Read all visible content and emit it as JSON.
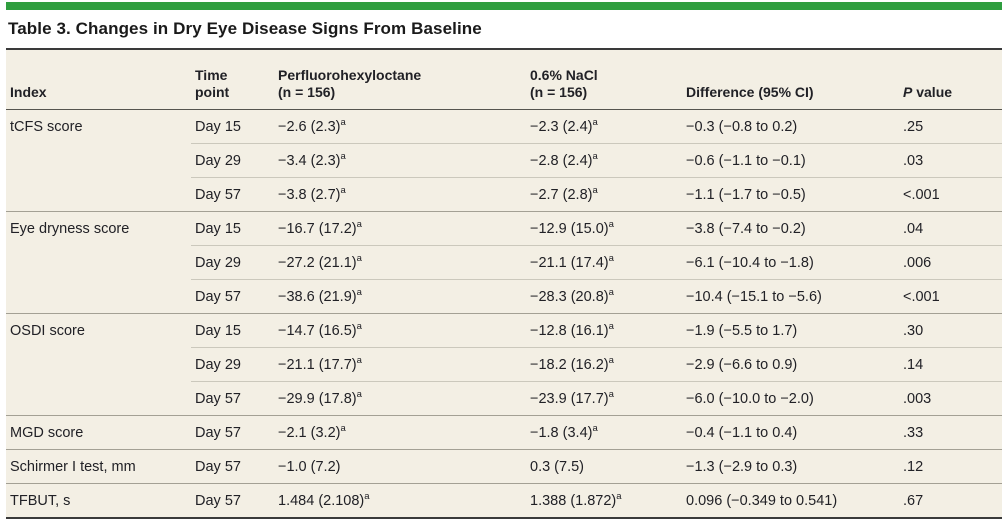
{
  "page": {
    "accent_green": "#2f9e3f",
    "table_background": "#f3efe4"
  },
  "table": {
    "title": "Table 3. Changes in Dry Eye Disease Signs From Baseline",
    "headers": {
      "index": "Index",
      "time": "Time\npoint",
      "pfho": "Perfluorohexyloctane\n(n = 156)",
      "nacl": "0.6% NaCl\n(n = 156)",
      "diff": "Difference (95% CI)",
      "p_italic": "P",
      "p_rest": " value"
    },
    "sections": [
      {
        "index": "tCFS score",
        "rows": [
          {
            "time": "Day 15",
            "pfho": "−2.6 (2.3)",
            "pfho_sup": "a",
            "nacl": "−2.3 (2.4)",
            "nacl_sup": "a",
            "diff": "−0.3 (−0.8 to 0.2)",
            "p": ".25"
          },
          {
            "time": "Day 29",
            "pfho": "−3.4 (2.3)",
            "pfho_sup": "a",
            "nacl": "−2.8 (2.4)",
            "nacl_sup": "a",
            "diff": "−0.6 (−1.1 to −0.1)",
            "p": ".03"
          },
          {
            "time": "Day 57",
            "pfho": "−3.8 (2.7)",
            "pfho_sup": "a",
            "nacl": "−2.7 (2.8)",
            "nacl_sup": "a",
            "diff": "−1.1 (−1.7 to −0.5)",
            "p": "<.001"
          }
        ]
      },
      {
        "index": "Eye dryness score",
        "rows": [
          {
            "time": "Day 15",
            "pfho": "−16.7 (17.2)",
            "pfho_sup": "a",
            "nacl": "−12.9 (15.0)",
            "nacl_sup": "a",
            "diff": "−3.8 (−7.4 to −0.2)",
            "p": ".04"
          },
          {
            "time": "Day 29",
            "pfho": "−27.2 (21.1)",
            "pfho_sup": "a",
            "nacl": "−21.1 (17.4)",
            "nacl_sup": "a",
            "diff": "−6.1 (−10.4 to −1.8)",
            "p": ".006"
          },
          {
            "time": "Day 57",
            "pfho": "−38.6 (21.9)",
            "pfho_sup": "a",
            "nacl": "−28.3 (20.8)",
            "nacl_sup": "a",
            "diff": "−10.4 (−15.1 to −5.6)",
            "p": "<.001"
          }
        ]
      },
      {
        "index": "OSDI score",
        "rows": [
          {
            "time": "Day 15",
            "pfho": "−14.7 (16.5)",
            "pfho_sup": "a",
            "nacl": "−12.8 (16.1)",
            "nacl_sup": "a",
            "diff": "−1.9 (−5.5 to 1.7)",
            "p": ".30"
          },
          {
            "time": "Day 29",
            "pfho": "−21.1 (17.7)",
            "pfho_sup": "a",
            "nacl": "−18.2 (16.2)",
            "nacl_sup": "a",
            "diff": "−2.9 (−6.6 to 0.9)",
            "p": ".14"
          },
          {
            "time": "Day 57",
            "pfho": "−29.9 (17.8)",
            "pfho_sup": "a",
            "nacl": "−23.9 (17.7)",
            "nacl_sup": "a",
            "diff": "−6.0 (−10.0 to −2.0)",
            "p": ".003"
          }
        ]
      },
      {
        "index": "MGD score",
        "rows": [
          {
            "time": "Day 57",
            "pfho": "−2.1 (3.2)",
            "pfho_sup": "a",
            "nacl": "−1.8 (3.4)",
            "nacl_sup": "a",
            "diff": "−0.4 (−1.1 to 0.4)",
            "p": ".33"
          }
        ]
      },
      {
        "index": "Schirmer I test, mm",
        "rows": [
          {
            "time": "Day 57",
            "pfho": "−1.0 (7.2)",
            "pfho_sup": "",
            "nacl": "0.3 (7.5)",
            "nacl_sup": "",
            "diff": "−1.3 (−2.9 to 0.3)",
            "p": ".12"
          }
        ]
      },
      {
        "index": "TFBUT, s",
        "rows": [
          {
            "time": "Day 57",
            "pfho": "1.484 (2.108)",
            "pfho_sup": "a",
            "nacl": "1.388 (1.872)",
            "nacl_sup": "a",
            "diff": "0.096 (−0.349 to 0.541)",
            "p": ".67"
          }
        ]
      }
    ]
  }
}
